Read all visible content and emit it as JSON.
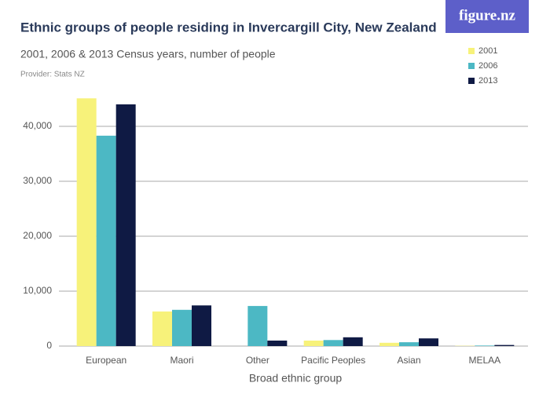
{
  "brand": "figure.nz",
  "chart_data": {
    "type": "bar",
    "title": "Ethnic groups of people residing in Invercargill City, New Zealand",
    "subtitle": "2001, 2006 & 2013 Census years, number of people",
    "provider": "Provider: Stats NZ",
    "x_label": "Broad ethnic group",
    "categories": [
      "European",
      "Maori",
      "Other",
      "Pacific Peoples",
      "Asian",
      "MELAA"
    ],
    "series": [
      {
        "name": "2001",
        "color": "#f7f27a",
        "values": [
          45100,
          6300,
          0,
          1000,
          600,
          50
        ]
      },
      {
        "name": "2006",
        "color": "#4cb8c4",
        "values": [
          38300,
          6600,
          7300,
          1100,
          700,
          100
        ]
      },
      {
        "name": "2013",
        "color": "#0f1a44",
        "values": [
          44000,
          7400,
          1000,
          1600,
          1400,
          200
        ]
      }
    ],
    "ylim": [
      0,
      46000
    ],
    "yticks": [
      0,
      {
        "value": 10000,
        "label": "10,000"
      },
      {
        "value": 20000,
        "label": "20,000"
      },
      {
        "value": 30000,
        "label": "30,000"
      },
      {
        "value": 40000,
        "label": "40,000"
      }
    ],
    "grid": true,
    "legend": "top-right"
  }
}
